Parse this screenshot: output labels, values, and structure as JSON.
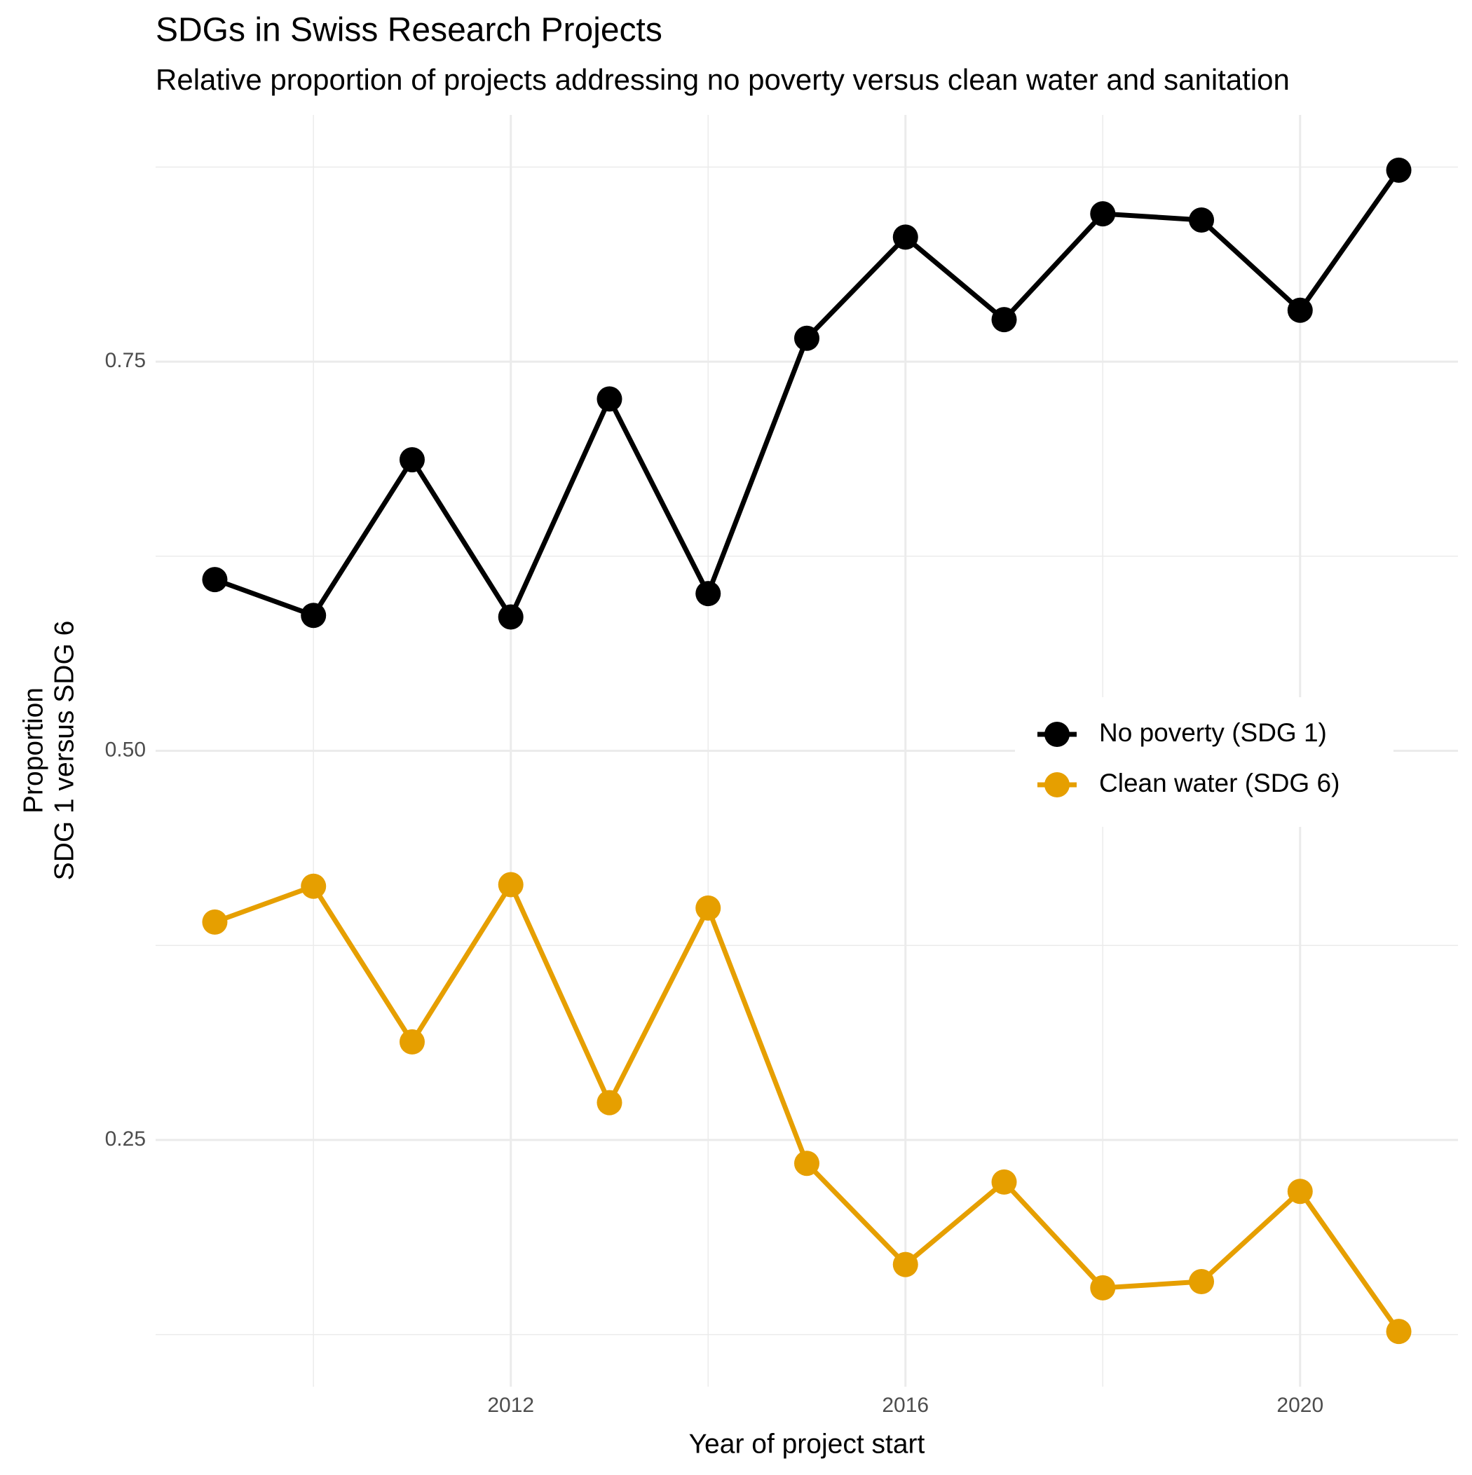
{
  "chart_data": {
    "type": "line",
    "title": "SDGs in Swiss Research Projects",
    "subtitle": "Relative proportion of projects addressing no poverty versus clean water and sanitation",
    "x_label": "Year of project start",
    "y_label": [
      "Proportion",
      "SDG 1 versus SDG 6"
    ],
    "x": [
      2009,
      2010,
      2011,
      2012,
      2013,
      2014,
      2015,
      2016,
      2017,
      2018,
      2019,
      2020,
      2021
    ],
    "series": [
      {
        "name": "No poverty (SDG 1)",
        "color": "#000000",
        "values": [
          0.61,
          0.587,
          0.687,
          0.586,
          0.726,
          0.601,
          0.765,
          0.83,
          0.777,
          0.845,
          0.841,
          0.783,
          0.873
        ]
      },
      {
        "name": "Clean water (SDG 6)",
        "color": "#E69F00",
        "values": [
          0.39,
          0.413,
          0.313,
          0.414,
          0.274,
          0.399,
          0.235,
          0.17,
          0.223,
          0.155,
          0.159,
          0.217,
          0.127
        ]
      }
    ],
    "xlim": [
      2008.4,
      2021.6
    ],
    "ylim": [
      0.0915,
      0.9085
    ],
    "xticks": [
      2012,
      2016,
      2020
    ],
    "yticks": [
      {
        "value": 0.25,
        "label": "0.25"
      },
      {
        "value": 0.5,
        "label": "0.50"
      },
      {
        "value": 0.75,
        "label": "0.75"
      }
    ],
    "x_minor_ticks": [
      2010,
      2014,
      2018
    ],
    "y_minor_ticks": [
      0.125,
      0.375,
      0.625,
      0.875
    ],
    "grid": true,
    "legend": "right"
  }
}
